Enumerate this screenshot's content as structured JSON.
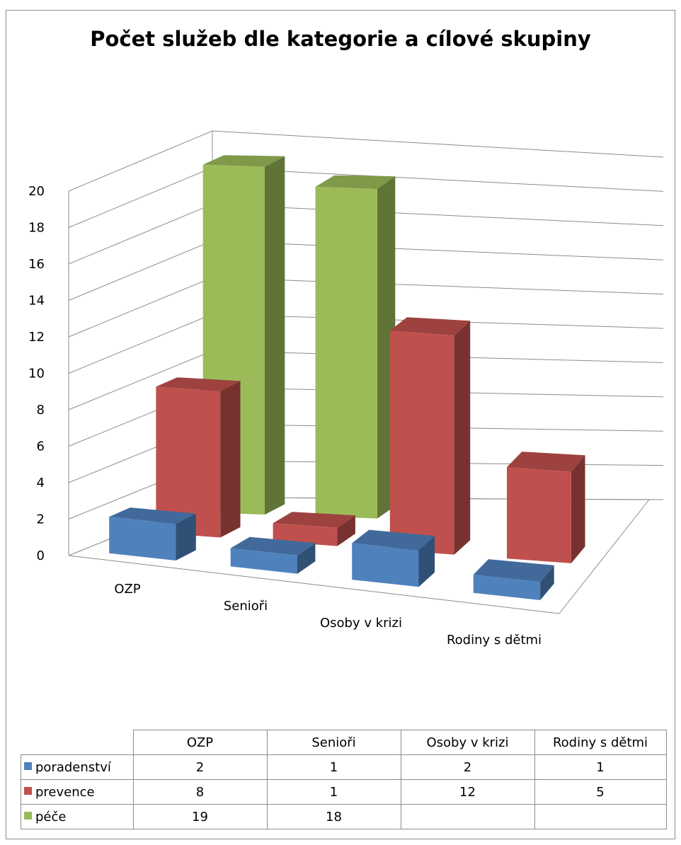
{
  "chart_data": {
    "type": "bar",
    "title": "Počet služeb dle kategorie a cílové skupiny",
    "categories": [
      "OZP",
      "Senioři",
      "Osoby v krizi",
      "Rodiny s dětmi"
    ],
    "series": [
      {
        "name": "poradenství",
        "values": [
          2,
          1,
          2,
          1
        ],
        "color": "#4f81bd"
      },
      {
        "name": "prevence",
        "values": [
          8,
          1,
          12,
          5
        ],
        "color": "#c0504d"
      },
      {
        "name": "péče",
        "values": [
          19,
          18,
          null,
          null
        ],
        "color": "#9bbb59"
      }
    ],
    "y_ticks": [
      "0",
      "2",
      "4",
      "6",
      "8",
      "10",
      "12",
      "14",
      "16",
      "18",
      "20"
    ],
    "ylim": [
      0,
      20
    ],
    "grid": true,
    "legend": "data-table-below",
    "table": {
      "rows": [
        {
          "label": "poradenství",
          "cells": [
            "2",
            "1",
            "2",
            "1"
          ]
        },
        {
          "label": "prevence",
          "cells": [
            "8",
            "1",
            "12",
            "5"
          ]
        },
        {
          "label": "péče",
          "cells": [
            "19",
            "18",
            "",
            ""
          ]
        }
      ]
    }
  }
}
